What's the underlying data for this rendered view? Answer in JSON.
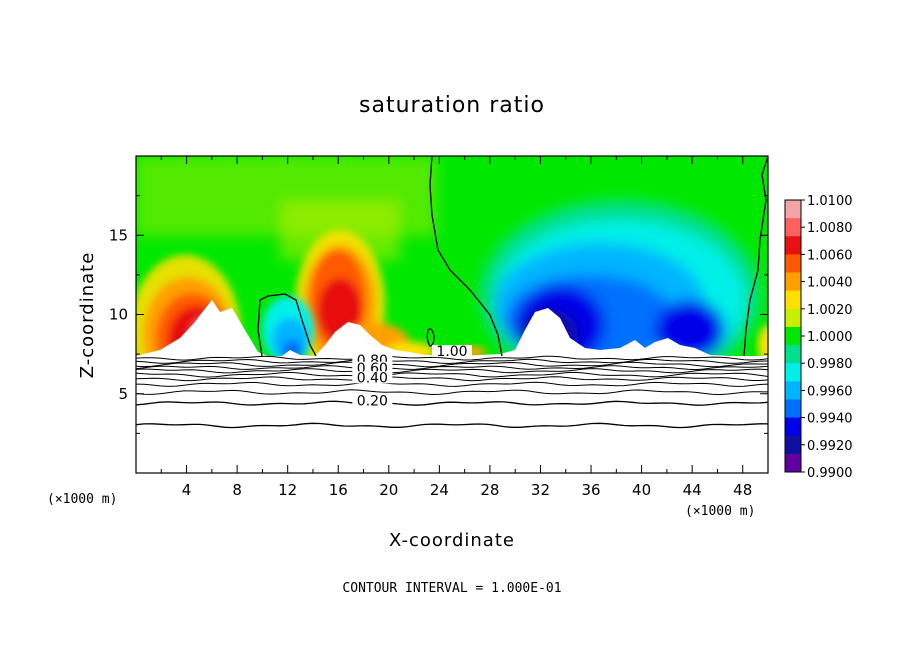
{
  "chart_data": {
    "type": "heatmap",
    "title": "saturation ratio",
    "xlabel": "X-coordinate",
    "ylabel": "Z-coordinate",
    "x_unit": "(×1000 m)",
    "xlim": [
      0,
      50
    ],
    "ylim": [
      0,
      20
    ],
    "x_ticks": [
      4,
      8,
      12,
      16,
      20,
      24,
      28,
      32,
      36,
      40,
      44,
      48
    ],
    "y_ticks": [
      5,
      10,
      15
    ],
    "footer": "CONTOUR INTERVAL = 1.000E-01",
    "colorbar": {
      "labels": [
        "1.0100",
        "1.0080",
        "1.0060",
        "1.0040",
        "1.0020",
        "1.0000",
        "0.9980",
        "0.9960",
        "0.9940",
        "0.9920",
        "0.9900"
      ],
      "colors": [
        "#f4a4a4",
        "#ff6060",
        "#e81010",
        "#ff5a00",
        "#ffa000",
        "#ffe000",
        "#c8ee00",
        "#00e800",
        "#00e08c",
        "#00f0e8",
        "#00b4ff",
        "#0070ff",
        "#0000e8",
        "#1010a0",
        "#6000a0"
      ]
    },
    "contour_labels": [
      {
        "text": "1.00",
        "x": 25,
        "y": 7.5
      },
      {
        "text": "0.80",
        "x": 18.7,
        "y": 6.95
      },
      {
        "text": "0.60",
        "x": 18.7,
        "y": 6.45
      },
      {
        "text": "0.40",
        "x": 18.7,
        "y": 5.85
      },
      {
        "text": "0.20",
        "x": 18.7,
        "y": 4.4
      }
    ],
    "contour_levels_below_surface": [
      7.25,
      7.05,
      6.85,
      6.65,
      6.45,
      6.2,
      5.95,
      5.6,
      5.1,
      4.4,
      3.0
    ]
  }
}
